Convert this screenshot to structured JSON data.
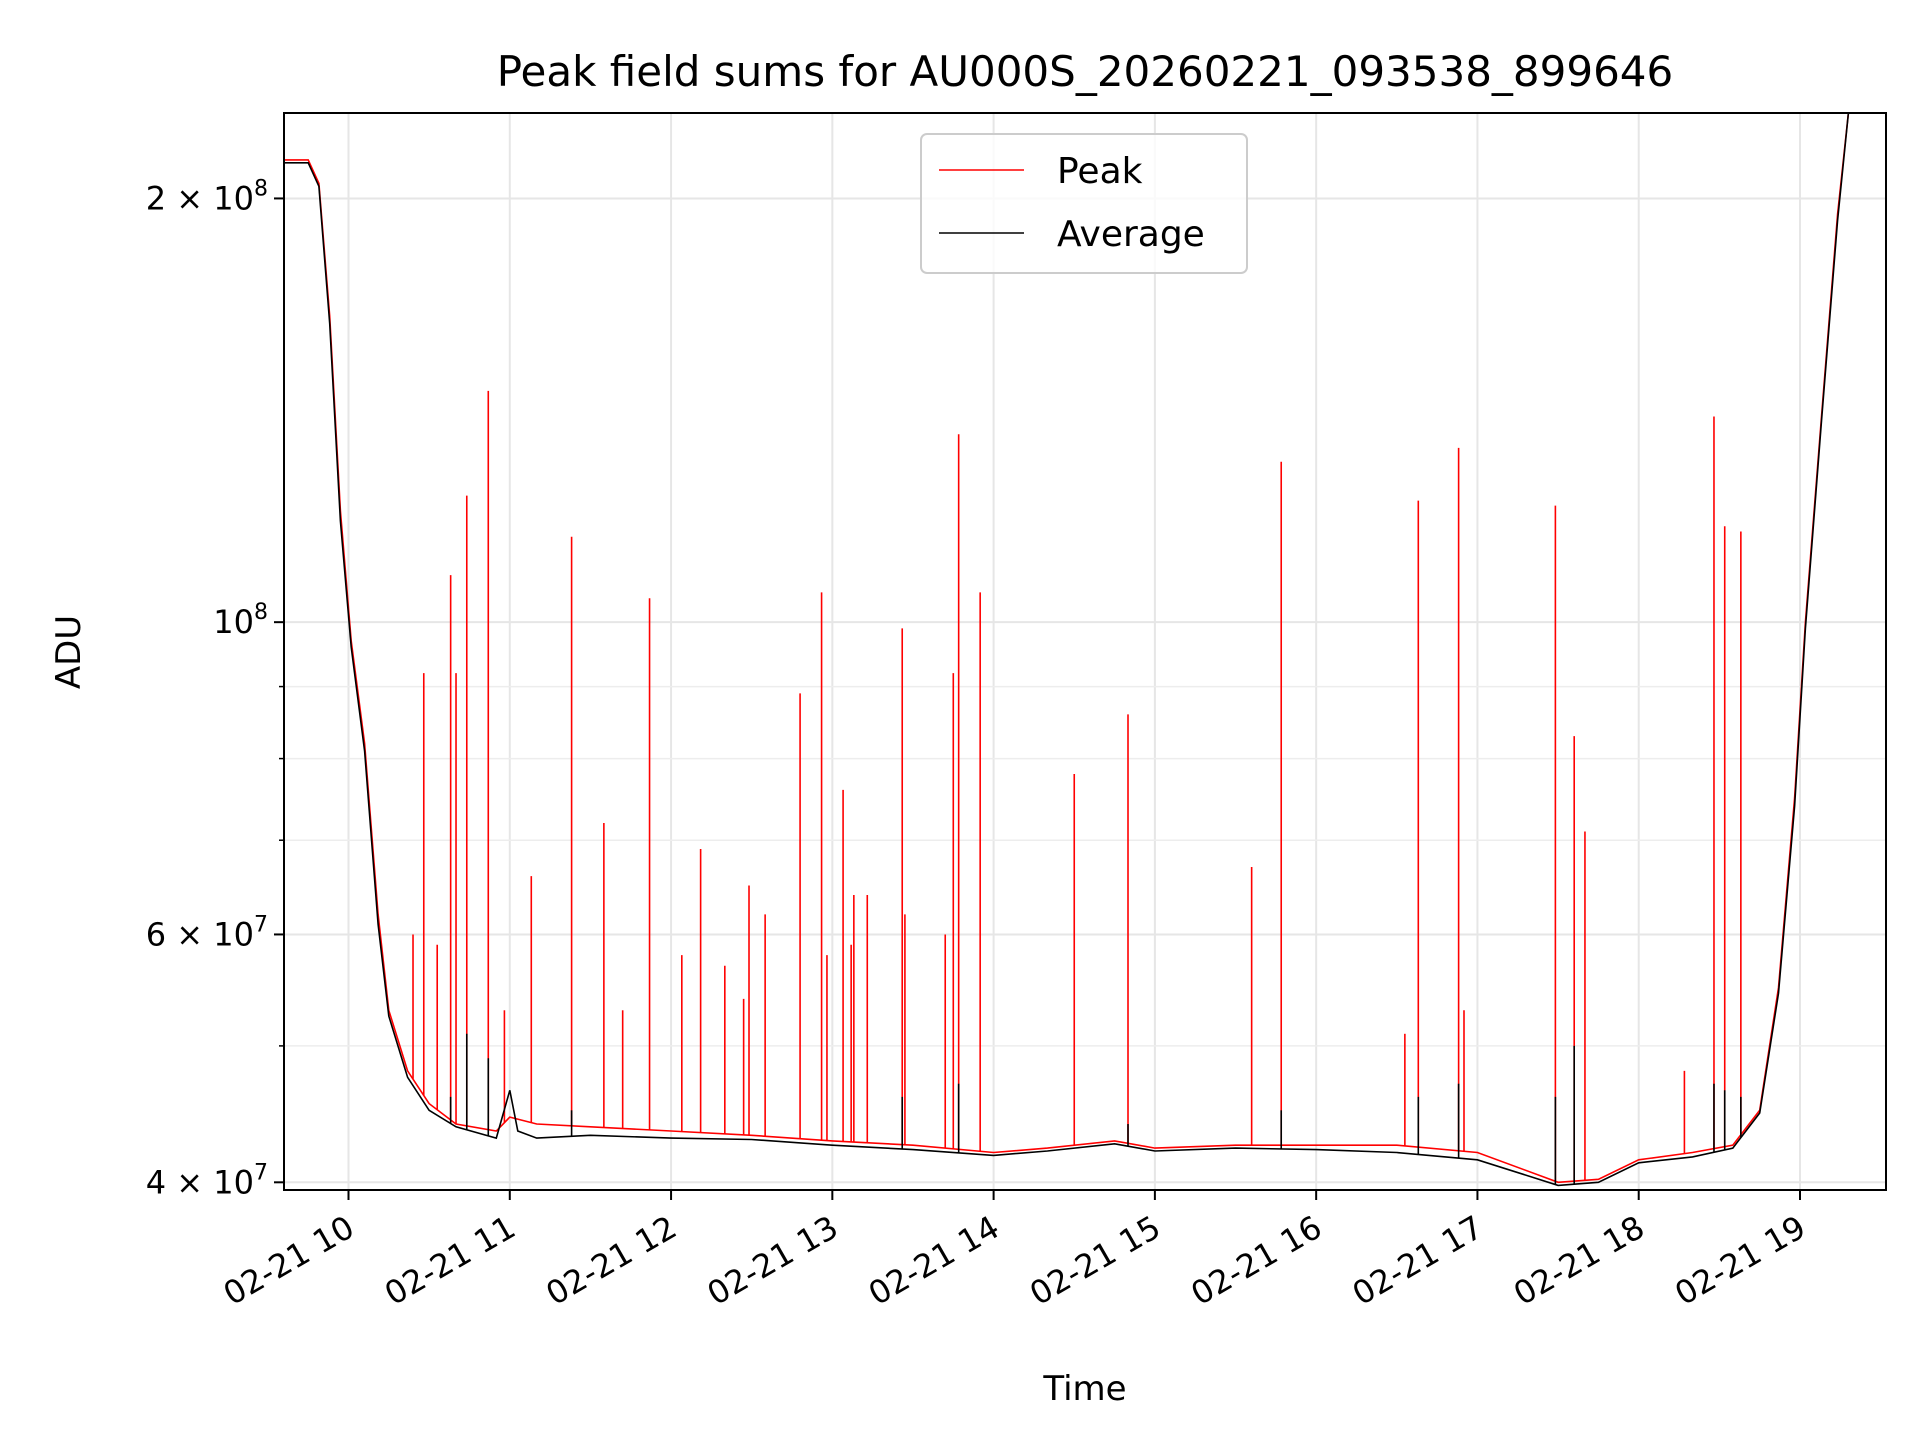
{
  "chart_data": {
    "type": "line",
    "title": "Peak field sums for AU000S_20260221_093538_899646",
    "xlabel": "Time",
    "ylabel": "ADU",
    "y_scale": "log",
    "ylim": [
      39500000,
      230000000
    ],
    "xlim": [
      "2026-02-21 09:36",
      "2026-02-21 19:32"
    ],
    "grid": true,
    "legend_position": "top-center",
    "x_ticks": [
      "02-21 10",
      "02-21 11",
      "02-21 12",
      "02-21 13",
      "02-21 14",
      "02-21 15",
      "02-21 16",
      "02-21 17",
      "02-21 18",
      "02-21 19"
    ],
    "x_tick_times": [
      "2026-02-21 10:00",
      "2026-02-21 11:00",
      "2026-02-21 12:00",
      "2026-02-21 13:00",
      "2026-02-21 14:00",
      "2026-02-21 15:00",
      "2026-02-21 16:00",
      "2026-02-21 17:00",
      "2026-02-21 18:00",
      "2026-02-21 19:00"
    ],
    "y_ticks": [
      {
        "value": 40000000,
        "mantissa": "4",
        "exponent": "7"
      },
      {
        "value": 60000000,
        "mantissa": "6",
        "exponent": "7"
      },
      {
        "value": 100000000,
        "mantissa": "",
        "exponent": "8"
      },
      {
        "value": 200000000,
        "mantissa": "2",
        "exponent": "8"
      }
    ],
    "y_minor": [
      50000000,
      70000000,
      80000000,
      90000000
    ],
    "series": [
      {
        "name": "Peak",
        "color": "#ff0000",
        "points": [
          [
            "2026-02-21 09:36",
            213000000
          ],
          [
            "2026-02-21 09:45",
            213000000
          ],
          [
            "2026-02-21 09:49",
            205000000
          ],
          [
            "2026-02-21 09:53",
            165000000
          ],
          [
            "2026-02-21 09:57",
            120000000
          ],
          [
            "2026-02-21 10:01",
            97000000
          ],
          [
            "2026-02-21 10:06",
            82000000
          ],
          [
            "2026-02-21 10:11",
            62000000
          ],
          [
            "2026-02-21 10:15",
            53000000
          ],
          [
            "2026-02-21 10:22",
            48000000
          ],
          [
            "2026-02-21 10:30",
            45500000
          ],
          [
            "2026-02-21 10:40",
            44000000
          ],
          [
            "2026-02-21 10:55",
            43500000
          ],
          [
            "2026-02-21 11:00",
            44500000
          ],
          [
            "2026-02-21 11:10",
            44000000
          ],
          [
            "2026-02-21 11:30",
            43800000
          ],
          [
            "2026-02-21 12:00",
            43500000
          ],
          [
            "2026-02-21 12:30",
            43200000
          ],
          [
            "2026-02-21 13:00",
            42800000
          ],
          [
            "2026-02-21 13:30",
            42500000
          ],
          [
            "2026-02-21 14:00",
            42000000
          ],
          [
            "2026-02-21 14:20",
            42300000
          ],
          [
            "2026-02-21 14:45",
            42800000
          ],
          [
            "2026-02-21 15:00",
            42300000
          ],
          [
            "2026-02-21 15:30",
            42500000
          ],
          [
            "2026-02-21 16:00",
            42500000
          ],
          [
            "2026-02-21 16:30",
            42500000
          ],
          [
            "2026-02-21 17:00",
            42000000
          ],
          [
            "2026-02-21 17:30",
            40000000
          ],
          [
            "2026-02-21 17:45",
            40200000
          ],
          [
            "2026-02-21 18:00",
            41500000
          ],
          [
            "2026-02-21 18:20",
            42000000
          ],
          [
            "2026-02-21 18:35",
            42500000
          ],
          [
            "2026-02-21 18:45",
            45000000
          ],
          [
            "2026-02-21 18:52",
            55000000
          ],
          [
            "2026-02-21 18:58",
            75000000
          ],
          [
            "2026-02-21 19:02",
            100000000
          ],
          [
            "2026-02-21 19:08",
            140000000
          ],
          [
            "2026-02-21 19:14",
            195000000
          ],
          [
            "2026-02-21 19:18",
            230000000
          ]
        ],
        "spikes": [
          [
            "2026-02-21 10:24",
            60000000
          ],
          [
            "2026-02-21 10:28",
            92000000
          ],
          [
            "2026-02-21 10:33",
            59000000
          ],
          [
            "2026-02-21 10:38",
            108000000
          ],
          [
            "2026-02-21 10:40",
            92000000
          ],
          [
            "2026-02-21 10:44",
            123000000
          ],
          [
            "2026-02-21 10:52",
            146000000
          ],
          [
            "2026-02-21 10:58",
            53000000
          ],
          [
            "2026-02-21 11:08",
            66000000
          ],
          [
            "2026-02-21 11:23",
            115000000
          ],
          [
            "2026-02-21 11:35",
            72000000
          ],
          [
            "2026-02-21 11:42",
            53000000
          ],
          [
            "2026-02-21 11:52",
            104000000
          ],
          [
            "2026-02-21 12:04",
            58000000
          ],
          [
            "2026-02-21 12:11",
            69000000
          ],
          [
            "2026-02-21 12:20",
            57000000
          ],
          [
            "2026-02-21 12:27",
            54000000
          ],
          [
            "2026-02-21 12:29",
            65000000
          ],
          [
            "2026-02-21 12:35",
            62000000
          ],
          [
            "2026-02-21 12:48",
            89000000
          ],
          [
            "2026-02-21 12:56",
            105000000
          ],
          [
            "2026-02-21 12:58",
            58000000
          ],
          [
            "2026-02-21 13:04",
            76000000
          ],
          [
            "2026-02-21 13:07",
            59000000
          ],
          [
            "2026-02-21 13:08",
            64000000
          ],
          [
            "2026-02-21 13:13",
            64000000
          ],
          [
            "2026-02-21 13:26",
            99000000
          ],
          [
            "2026-02-21 13:27",
            62000000
          ],
          [
            "2026-02-21 13:42",
            60000000
          ],
          [
            "2026-02-21 13:45",
            92000000
          ],
          [
            "2026-02-21 13:47",
            136000000
          ],
          [
            "2026-02-21 13:55",
            105000000
          ],
          [
            "2026-02-21 14:30",
            78000000
          ],
          [
            "2026-02-21 14:50",
            86000000
          ],
          [
            "2026-02-21 15:36",
            67000000
          ],
          [
            "2026-02-21 15:47",
            130000000
          ],
          [
            "2026-02-21 16:33",
            51000000
          ],
          [
            "2026-02-21 16:38",
            122000000
          ],
          [
            "2026-02-21 16:53",
            133000000
          ],
          [
            "2026-02-21 16:55",
            53000000
          ],
          [
            "2026-02-21 17:29",
            121000000
          ],
          [
            "2026-02-21 17:36",
            83000000
          ],
          [
            "2026-02-21 17:40",
            71000000
          ],
          [
            "2026-02-21 18:17",
            48000000
          ],
          [
            "2026-02-21 18:28",
            140000000
          ],
          [
            "2026-02-21 18:32",
            117000000
          ],
          [
            "2026-02-21 18:38",
            116000000
          ]
        ]
      },
      {
        "name": "Average",
        "color": "#000000",
        "points": [
          [
            "2026-02-21 09:36",
            212000000
          ],
          [
            "2026-02-21 09:45",
            212000000
          ],
          [
            "2026-02-21 09:49",
            204000000
          ],
          [
            "2026-02-21 09:53",
            163000000
          ],
          [
            "2026-02-21 09:57",
            118000000
          ],
          [
            "2026-02-21 10:01",
            96000000
          ],
          [
            "2026-02-21 10:06",
            81000000
          ],
          [
            "2026-02-21 10:11",
            61000000
          ],
          [
            "2026-02-21 10:15",
            52500000
          ],
          [
            "2026-02-21 10:22",
            47500000
          ],
          [
            "2026-02-21 10:30",
            45000000
          ],
          [
            "2026-02-21 10:40",
            43800000
          ],
          [
            "2026-02-21 10:55",
            43000000
          ],
          [
            "2026-02-21 11:00",
            46500000
          ],
          [
            "2026-02-21 11:03",
            43500000
          ],
          [
            "2026-02-21 11:10",
            43000000
          ],
          [
            "2026-02-21 11:30",
            43200000
          ],
          [
            "2026-02-21 12:00",
            43000000
          ],
          [
            "2026-02-21 12:30",
            42900000
          ],
          [
            "2026-02-21 13:00",
            42500000
          ],
          [
            "2026-02-21 13:30",
            42200000
          ],
          [
            "2026-02-21 14:00",
            41800000
          ],
          [
            "2026-02-21 14:20",
            42100000
          ],
          [
            "2026-02-21 14:45",
            42600000
          ],
          [
            "2026-02-21 15:00",
            42100000
          ],
          [
            "2026-02-21 15:30",
            42300000
          ],
          [
            "2026-02-21 16:00",
            42200000
          ],
          [
            "2026-02-21 16:30",
            42000000
          ],
          [
            "2026-02-21 17:00",
            41500000
          ],
          [
            "2026-02-21 17:30",
            39800000
          ],
          [
            "2026-02-21 17:45",
            40000000
          ],
          [
            "2026-02-21 18:00",
            41300000
          ],
          [
            "2026-02-21 18:20",
            41700000
          ],
          [
            "2026-02-21 18:35",
            42300000
          ],
          [
            "2026-02-21 18:45",
            44800000
          ],
          [
            "2026-02-21 18:52",
            54500000
          ],
          [
            "2026-02-21 18:58",
            74000000
          ],
          [
            "2026-02-21 19:02",
            99000000
          ],
          [
            "2026-02-21 19:08",
            139000000
          ],
          [
            "2026-02-21 19:14",
            193000000
          ],
          [
            "2026-02-21 19:18",
            230000000
          ]
        ],
        "spikes": [
          [
            "2026-02-21 10:38",
            46000000
          ],
          [
            "2026-02-21 10:44",
            51000000
          ],
          [
            "2026-02-21 10:52",
            49000000
          ],
          [
            "2026-02-21 11:23",
            45000000
          ],
          [
            "2026-02-21 13:26",
            46000000
          ],
          [
            "2026-02-21 13:47",
            47000000
          ],
          [
            "2026-02-21 14:50",
            44000000
          ],
          [
            "2026-02-21 15:47",
            45000000
          ],
          [
            "2026-02-21 16:38",
            46000000
          ],
          [
            "2026-02-21 16:53",
            47000000
          ],
          [
            "2026-02-21 17:29",
            46000000
          ],
          [
            "2026-02-21 17:36",
            50000000
          ],
          [
            "2026-02-21 18:28",
            47000000
          ],
          [
            "2026-02-21 18:32",
            46500000
          ],
          [
            "2026-02-21 18:38",
            46000000
          ]
        ]
      }
    ]
  }
}
